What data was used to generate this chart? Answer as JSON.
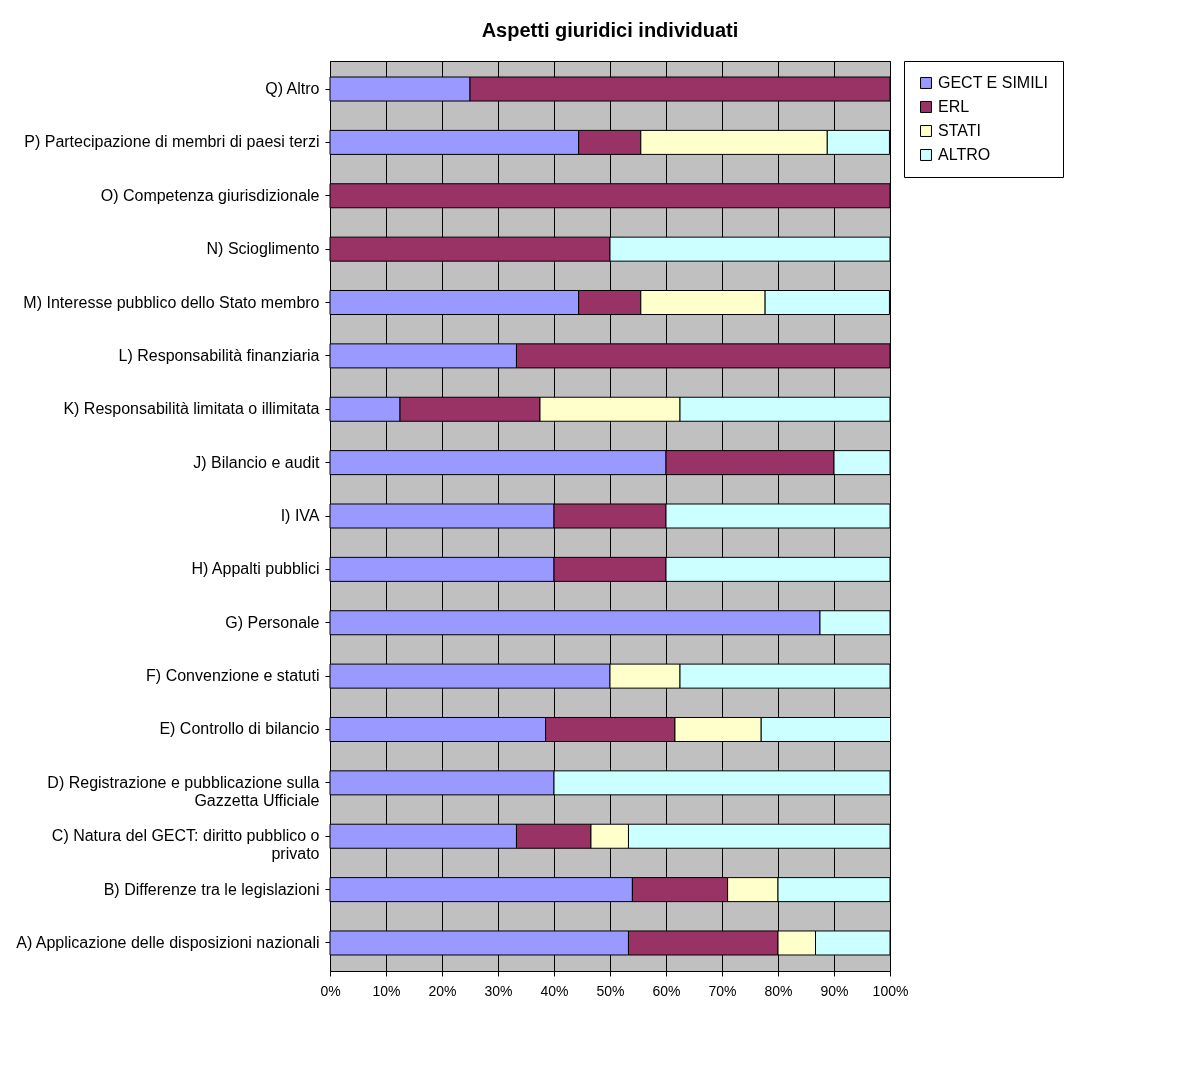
{
  "chart_data": {
    "type": "bar",
    "title": "Aspetti giuridici individuati",
    "orientation": "horizontal",
    "stacked": true,
    "categories": [
      "Q) Altro",
      "P) Partecipazione di membri di paesi terzi",
      "O) Competenza giurisdizionale",
      "N) Scioglimento",
      "M) Interesse pubblico dello Stato membro",
      "L) Responsabilità finanziaria",
      "K) Responsabilità limitata o illimitata",
      "J) Bilancio e audit",
      "I) IVA",
      "H) Appalti pubblici",
      "G) Personale",
      "F) Convenzione e statuti",
      "E) Controllo di bilancio",
      "D) Registrazione e pubblicazione sulla\nGazzetta Ufficiale",
      "C) Natura del GECT: diritto pubblico o\nprivato",
      "B) Differenze tra le legislazioni",
      "A) Applicazione  delle disposizioni nazionali"
    ],
    "series": [
      {
        "name": "GECT E SIMILI",
        "color": "#9999ff",
        "values": [
          25,
          44.4,
          null,
          null,
          44.4,
          33.3,
          12.5,
          60,
          40,
          40,
          87.5,
          50,
          38.5,
          40,
          33.3,
          54,
          53.3
        ]
      },
      {
        "name": "ERL",
        "color": "#993366",
        "values": [
          75,
          11.1,
          100,
          50,
          11.1,
          66.7,
          25,
          30,
          20,
          20,
          null,
          null,
          23.1,
          null,
          13.3,
          17,
          26.7
        ]
      },
      {
        "name": "STATI",
        "color": "#ffffcc",
        "values": [
          null,
          33.3,
          null,
          null,
          22.2,
          null,
          25,
          null,
          null,
          null,
          null,
          12.5,
          15.4,
          null,
          6.7,
          9,
          6.7
        ]
      },
      {
        "name": "ALTRO",
        "color": "#ccffff",
        "values": [
          null,
          11.1,
          null,
          50,
          22.2,
          null,
          37.5,
          10,
          40,
          40,
          12.5,
          37.5,
          23.1,
          60,
          46.7,
          20,
          13.3
        ]
      }
    ],
    "xlim": [
      0,
      100
    ],
    "xticks": [
      {
        "value": 0,
        "label": "0%"
      },
      {
        "value": 10,
        "label": "10%"
      },
      {
        "value": 20,
        "label": "20%"
      },
      {
        "value": 30,
        "label": "30%"
      },
      {
        "value": 40,
        "label": "40%"
      },
      {
        "value": 50,
        "label": "50%"
      },
      {
        "value": 60,
        "label": "60%"
      },
      {
        "value": 70,
        "label": "70%"
      },
      {
        "value": 80,
        "label": "80%"
      },
      {
        "value": 90,
        "label": "90%"
      },
      {
        "value": 100,
        "label": "100%"
      }
    ],
    "grid": "x",
    "legend": "right"
  }
}
